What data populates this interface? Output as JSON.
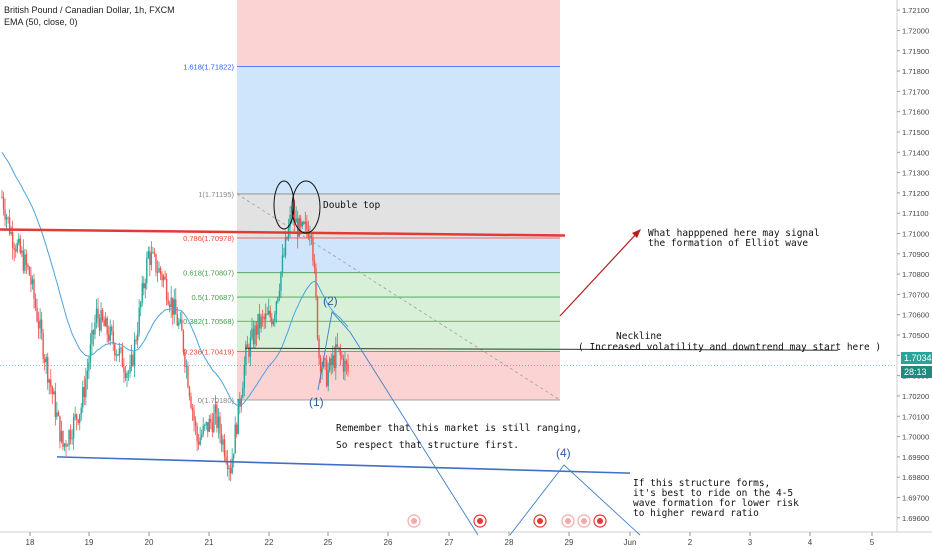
{
  "header": {
    "symbol_line": "British Pound / Canadian Dollar, 1h, FXCM",
    "indicator_line": "EMA (50, close, 0)"
  },
  "price_tag": {
    "last": "1.70349",
    "countdown": "28:13"
  },
  "colors": {
    "up_candle": "#26a69a",
    "down_candle": "#ef5350",
    "ema": "#4aa3df",
    "resistance": "#e53935",
    "support": "#3f6fc7",
    "neckline": "#333333",
    "wave": "#3f7fc6",
    "arrow": "#b71c1c"
  },
  "annotations": {
    "double_top": "Double top",
    "elliot_1": "What happpened here may signal",
    "elliot_2": "the formation of Elliot wave",
    "neckline_title": "Neckline",
    "neckline_sub": "( Increased volatility and downtrend may start here )",
    "ranging_1": "Remember that this market is still ranging,",
    "ranging_2": "So respect that structure first.",
    "structure_1": "If this structure forms,",
    "structure_2": "it's best to ride on the 4-5",
    "structure_3": "wave formation for lower risk",
    "structure_4": "to higher reward ratio",
    "wave_1": "(1)",
    "wave_2": "(2)",
    "wave_4": "(4)"
  },
  "chart_data": {
    "type": "candlestick",
    "symbol": "British Pound / Canadian Dollar, 1h, FXCM",
    "x_ticks": [
      "18",
      "19",
      "20",
      "21",
      "22",
      "25",
      "26",
      "27",
      "28",
      "29",
      "Jun",
      "2",
      "3",
      "4",
      "5"
    ],
    "y_ticks": [
      "1.72100",
      "1.72000",
      "1.71900",
      "1.71800",
      "1.71700",
      "1.71600",
      "1.71500",
      "1.71400",
      "1.71300",
      "1.71200",
      "1.71100",
      "1.71000",
      "1.70900",
      "1.70800",
      "1.70700",
      "1.70600",
      "1.70500",
      "1.70400",
      "1.70300",
      "1.70200",
      "1.70100",
      "1.70000",
      "1.69900",
      "1.69800",
      "1.69700",
      "1.69600"
    ],
    "y_range": [
      1.6953,
      1.7215
    ],
    "fib_levels": [
      {
        "label": "1.618(1.71822)",
        "price": 1.71822,
        "color": "#2962ff"
      },
      {
        "label": "1(1.71195)",
        "price": 1.71195,
        "color": "#888888"
      },
      {
        "label": "0.786(1.70978)",
        "price": 1.70978,
        "color": "#f44336"
      },
      {
        "label": "0.618(1.70807)",
        "price": 1.70807,
        "color": "#43a047"
      },
      {
        "label": "0.5(1.70687)",
        "price": 1.70687,
        "color": "#43a047"
      },
      {
        "label": "0.382(1.70568)",
        "price": 1.70568,
        "color": "#43a047"
      },
      {
        "label": "0.236(1.70419)",
        "price": 1.70419,
        "color": "#f44336"
      },
      {
        "label": "0(1.70180)",
        "price": 1.7018,
        "color": "#888888"
      }
    ],
    "fib_zones": [
      {
        "from": 1.7215,
        "to": 1.71822,
        "color": "#fbd3d3"
      },
      {
        "from": 1.71822,
        "to": 1.71195,
        "color": "#cfe5fb"
      },
      {
        "from": 1.71195,
        "to": 1.70978,
        "color": "#e2e2e2"
      },
      {
        "from": 1.70978,
        "to": 1.70807,
        "color": "#cfe5fb"
      },
      {
        "from": 1.70807,
        "to": 1.70419,
        "color": "#d8efd8"
      },
      {
        "from": 1.70419,
        "to": 1.7018,
        "color": "#fbd3d3"
      }
    ],
    "resistance_line": [
      1.7102,
      1.7099
    ],
    "support_line": [
      1.699,
      1.6982
    ],
    "neckline": 1.70435,
    "current_price": 1.70349,
    "seed": 7
  }
}
